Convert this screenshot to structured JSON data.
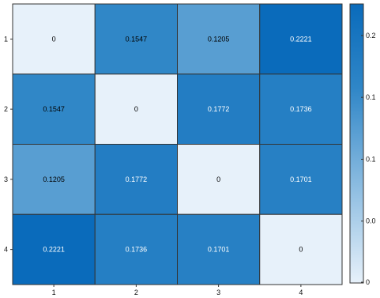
{
  "chart_data": {
    "type": "heatmap",
    "title": "",
    "xlabel": "",
    "ylabel": "",
    "x_categories": [
      "1",
      "2",
      "3",
      "4"
    ],
    "y_categories": [
      "1",
      "2",
      "3",
      "4"
    ],
    "values": [
      [
        0,
        0.1547,
        0.1205,
        0.2221
      ],
      [
        0.1547,
        0,
        0.1772,
        0.1736
      ],
      [
        0.1205,
        0.1772,
        0,
        0.1701
      ],
      [
        0.2221,
        0.1736,
        0.1701,
        0
      ]
    ],
    "cell_labels": [
      [
        "0",
        "0.1547",
        "0.1205",
        "0.2221"
      ],
      [
        "0.1547",
        "0",
        "0.1772",
        "0.1736"
      ],
      [
        "0.1205",
        "0.1772",
        "0",
        "0.1701"
      ],
      [
        "0.2221",
        "0.1736",
        "0.1701",
        "0"
      ]
    ],
    "colorbar": {
      "range": [
        0,
        0.2221
      ],
      "ticks": [
        0,
        0.05,
        0.1,
        0.15,
        0.2
      ],
      "tick_labels": [
        "0",
        "0.0",
        "0.1",
        "0.1",
        "0.2"
      ],
      "colors": {
        "low": "#e7f1fa",
        "mid": "#2f86c7",
        "high": "#0a6bbb"
      }
    },
    "grid": true,
    "legend": "right"
  }
}
